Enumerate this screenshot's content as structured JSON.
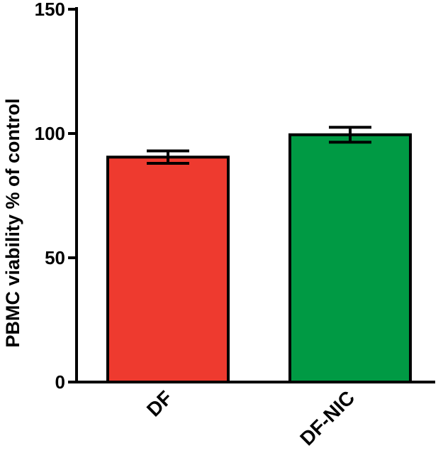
{
  "chart_data": {
    "type": "bar",
    "title": "",
    "xlabel": "",
    "ylabel": "PBMC viability  % of control",
    "ylim": [
      0,
      150
    ],
    "yticks": [
      "0",
      "50",
      "100",
      "150"
    ],
    "categories": [
      "DF",
      "DF-NIC"
    ],
    "series": [
      {
        "values": [
          90.5,
          99.5
        ],
        "errors": [
          2.5,
          3.0
        ],
        "colors": [
          "#ee3a2f",
          "#009a44"
        ]
      }
    ],
    "grid": false,
    "legend": "none"
  }
}
